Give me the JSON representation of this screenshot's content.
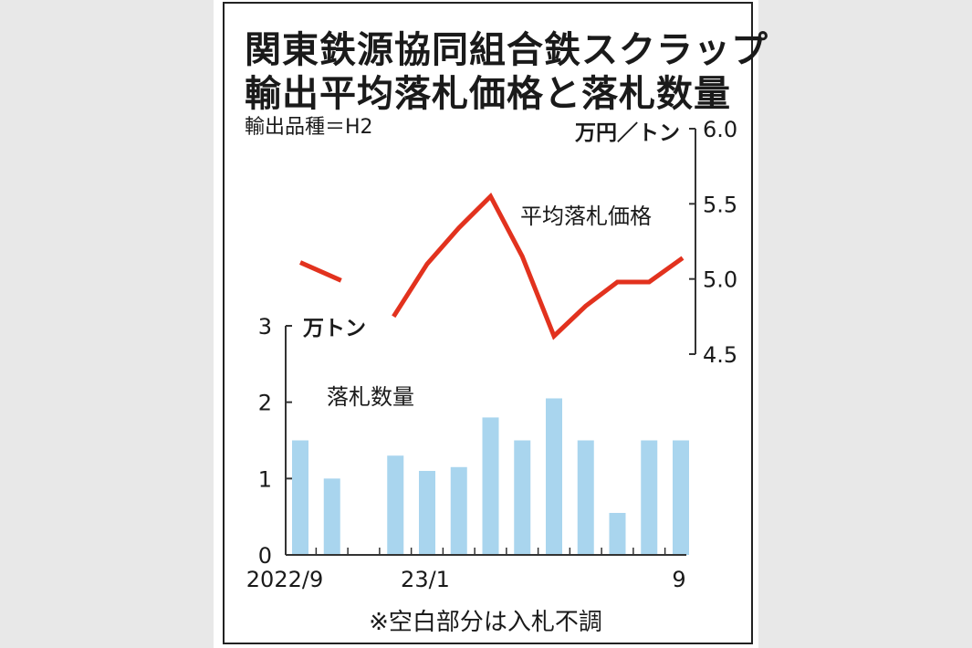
{
  "title": {
    "line1": "関東鉄源協同組合鉄スクラップ",
    "line2": "輸出平均落札価格と落札数量"
  },
  "subtitle": "輸出品種＝H2",
  "footnote": "※空白部分は入札不調",
  "colors": {
    "price_line": "#e2321e",
    "volume_bar": "#a9d5ee",
    "axis": "#333333",
    "background": "#ffffff",
    "page_bg": "#e8e8e8"
  },
  "chart_data": {
    "type": "bar+line",
    "x_tick_labels": [
      "2022/9",
      "23/1",
      "9"
    ],
    "months": [
      "2022/9",
      "2022/10",
      "2022/11",
      "2022/12",
      "2023/1",
      "2023/2",
      "2023/3",
      "2023/4",
      "2023/5",
      "2023/6",
      "2023/7",
      "2023/8",
      "2023/9"
    ],
    "y_left": {
      "unit": "万トン",
      "lim": [
        0,
        3
      ],
      "ticks": [
        "0",
        "1",
        "2",
        "3"
      ]
    },
    "y_right": {
      "unit": "万円／トン",
      "lim": [
        4.5,
        6.0
      ],
      "ticks": [
        "4.5",
        "5.0",
        "5.5",
        "6.0"
      ]
    },
    "series": [
      {
        "name": "落札数量",
        "type": "bar",
        "axis": "left",
        "values": [
          1.5,
          1.0,
          null,
          1.3,
          1.1,
          1.15,
          1.8,
          1.5,
          2.05,
          1.5,
          0.55,
          1.5,
          1.5
        ]
      },
      {
        "name": "平均落札価格",
        "type": "line",
        "axis": "right",
        "values": [
          5.11,
          4.99,
          null,
          4.75,
          5.1,
          5.34,
          5.55,
          5.15,
          4.62,
          4.82,
          4.98,
          4.98,
          5.14
        ],
        "segment_note": "line starts at 2022/9 and 2022/10 as separate segment"
      }
    ],
    "grid": false
  }
}
